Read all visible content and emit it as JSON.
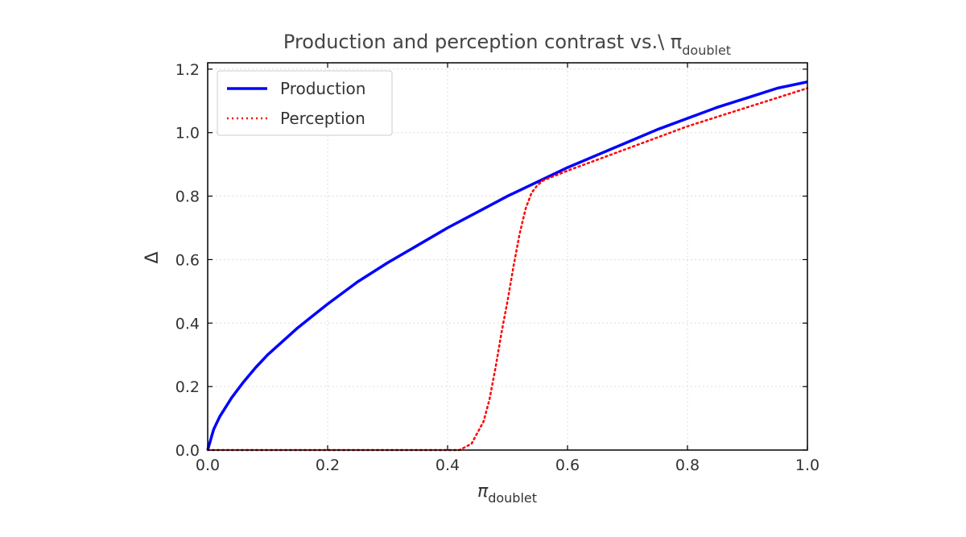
{
  "chart_data": {
    "type": "line",
    "title": "Production and perception contrast vs.\\ π",
    "title_subscript": "doublet",
    "xlabel": "π",
    "xlabel_subscript": "doublet",
    "ylabel": "Δ",
    "xlim": [
      0.0,
      1.0
    ],
    "ylim": [
      0.0,
      1.22
    ],
    "xticks": [
      0.0,
      0.2,
      0.4,
      0.6,
      0.8,
      1.0
    ],
    "xtick_labels": [
      "0.0",
      "0.2",
      "0.4",
      "0.6",
      "0.8",
      "1.0"
    ],
    "yticks": [
      0.0,
      0.2,
      0.4,
      0.6,
      0.8,
      1.0,
      1.2
    ],
    "ytick_labels": [
      "0.0",
      "0.2",
      "0.4",
      "0.6",
      "0.8",
      "1.0",
      "1.2"
    ],
    "grid": true,
    "legend_position": "top-left",
    "series": [
      {
        "name": "Production",
        "color": "#0000ff",
        "style": "solid",
        "x": [
          0.0,
          0.01,
          0.02,
          0.04,
          0.06,
          0.08,
          0.1,
          0.15,
          0.2,
          0.25,
          0.3,
          0.35,
          0.4,
          0.45,
          0.5,
          0.55,
          0.6,
          0.65,
          0.7,
          0.75,
          0.8,
          0.85,
          0.9,
          0.95,
          1.0
        ],
        "values": [
          0.0,
          0.065,
          0.105,
          0.165,
          0.215,
          0.26,
          0.3,
          0.385,
          0.46,
          0.53,
          0.59,
          0.645,
          0.7,
          0.75,
          0.8,
          0.845,
          0.89,
          0.93,
          0.97,
          1.01,
          1.045,
          1.08,
          1.11,
          1.14,
          1.16
        ]
      },
      {
        "name": "Perception",
        "color": "#ff0000",
        "style": "dotted",
        "x": [
          0.0,
          0.05,
          0.1,
          0.15,
          0.2,
          0.25,
          0.3,
          0.35,
          0.4,
          0.42,
          0.44,
          0.46,
          0.47,
          0.48,
          0.49,
          0.5,
          0.51,
          0.52,
          0.53,
          0.54,
          0.55,
          0.56,
          0.58,
          0.6,
          0.65,
          0.7,
          0.75,
          0.8,
          0.85,
          0.9,
          0.95,
          1.0
        ],
        "values": [
          0.0,
          0.0,
          0.0,
          0.0,
          0.0,
          0.0,
          0.0,
          0.0,
          0.0,
          0.0,
          0.02,
          0.09,
          0.16,
          0.26,
          0.37,
          0.47,
          0.58,
          0.68,
          0.76,
          0.81,
          0.835,
          0.85,
          0.865,
          0.88,
          0.915,
          0.95,
          0.985,
          1.02,
          1.05,
          1.08,
          1.11,
          1.14
        ]
      }
    ]
  }
}
